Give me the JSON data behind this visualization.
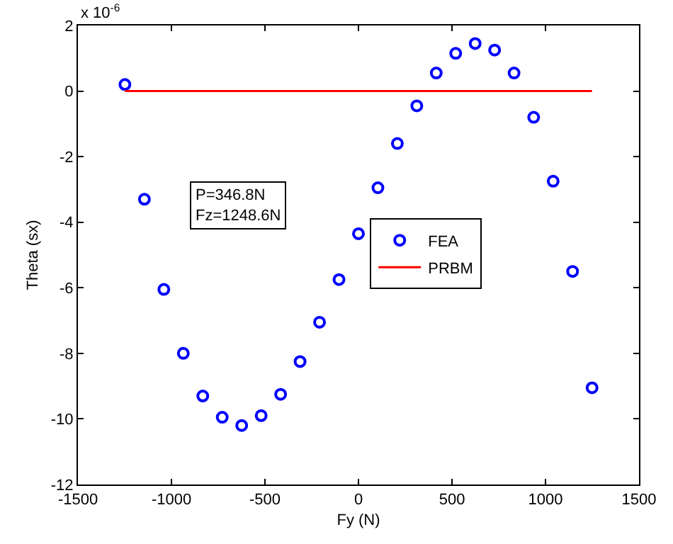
{
  "chart_data": {
    "type": "scatter",
    "xlabel": "Fy (N)",
    "ylabel": "Theta (sx)",
    "annotations": [
      "x 10$^{-6}$",
      "P=346.8N\nFz=1248.6N"
    ],
    "xlim": [
      -1500,
      1500
    ],
    "xticks": [
      -1500,
      -1000,
      -500,
      0,
      500,
      1000,
      1500
    ],
    "ylim": [
      -12,
      2
    ],
    "yticks": [
      -12,
      -10,
      -8,
      -6,
      -4,
      -2,
      0,
      2
    ],
    "grid": false,
    "legend": "right",
    "series": [
      {
        "name": "FEA",
        "type": "scatter",
        "color": "#0000ff",
        "marker": "circle",
        "x": [
          -1248.6,
          -1144.5,
          -1040.5,
          -936.4,
          -832.4,
          -728.3,
          -624.3,
          -520.2,
          -416.2,
          -312.1,
          -208.1,
          -104,
          0,
          104,
          208,
          312,
          416,
          520,
          624,
          728,
          832,
          937,
          1041,
          1145,
          1249
        ],
        "values": [
          0.2,
          -3.3,
          -6.05,
          -8.0,
          -9.3,
          -9.95,
          -10.2,
          -9.9,
          -9.25,
          -8.25,
          -7.05,
          -5.75,
          -4.35,
          -2.95,
          -1.6,
          -0.45,
          0.55,
          1.15,
          1.45,
          1.25,
          0.55,
          -0.8,
          -2.75,
          -5.5,
          -9.05
        ]
      },
      {
        "name": "PRBM",
        "type": "line",
        "color": "#ff0000",
        "line_style": "solid",
        "x": [
          -1248.6,
          1248.6
        ],
        "values": [
          0,
          0
        ]
      }
    ]
  }
}
